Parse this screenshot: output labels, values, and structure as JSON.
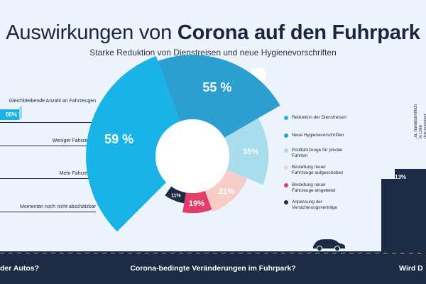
{
  "title_light": "Auswirkungen von ",
  "title_bold": "Corona auf den Fuhrpark",
  "subtitle": "Starke Reduktion von Dienstreisen und neue Hygienevorschriften",
  "left_panel": {
    "items": [
      {
        "label": "Gleichbleibende Anzahl an Fahrzeugen",
        "value": "60%"
      },
      {
        "label": "Weniger Fahrzeuge",
        "value": ""
      },
      {
        "label": "Mehr Fahrzeuge",
        "value": ""
      },
      {
        "label": "Momentan noch nicht abschätzbar",
        "value": ""
      }
    ]
  },
  "right_panel": {
    "bar_value": "13%",
    "tag": "Ja, handschriftlich in Liste dokumentiert"
  },
  "footer": {
    "left": "der Autos?",
    "center": "Corona-bedingte Veränderungen im Fuhrpark?",
    "right": "Wird D"
  },
  "chart_data": {
    "type": "pie",
    "categories": [
      "Reduktion der Dienstreisen",
      "Neue Hygienevorschriften",
      "Poolfahrzeuge für private Fahrten",
      "Bestellung neuer Fahrzeuge aufgeschoben",
      "Bestellung neuer Fahrzeuge eingeleitet",
      "Anpassung der Versicherungsverträge"
    ],
    "values": [
      59,
      55,
      35,
      21,
      19,
      11
    ],
    "labels": [
      "59 %",
      "55 %",
      "35%",
      "21%",
      "19%",
      "11%"
    ],
    "colors": [
      "#1ab3e8",
      "#2a9fd0",
      "#a9dced",
      "#f6cdc7",
      "#e33e6a",
      "#1c2a44"
    ],
    "legend": [
      "Reduktion der Dienstreisen",
      "Neue Hygienevorschriften",
      "Poolfahrzeuge für private Fahrten",
      "Bestellung neuer Fahrzeuge aufgeschoben",
      "Bestellung neuer Fahrzeuge eingeleitet",
      "Anpassung der Versicherungsverträge"
    ],
    "legend_position": "right"
  }
}
